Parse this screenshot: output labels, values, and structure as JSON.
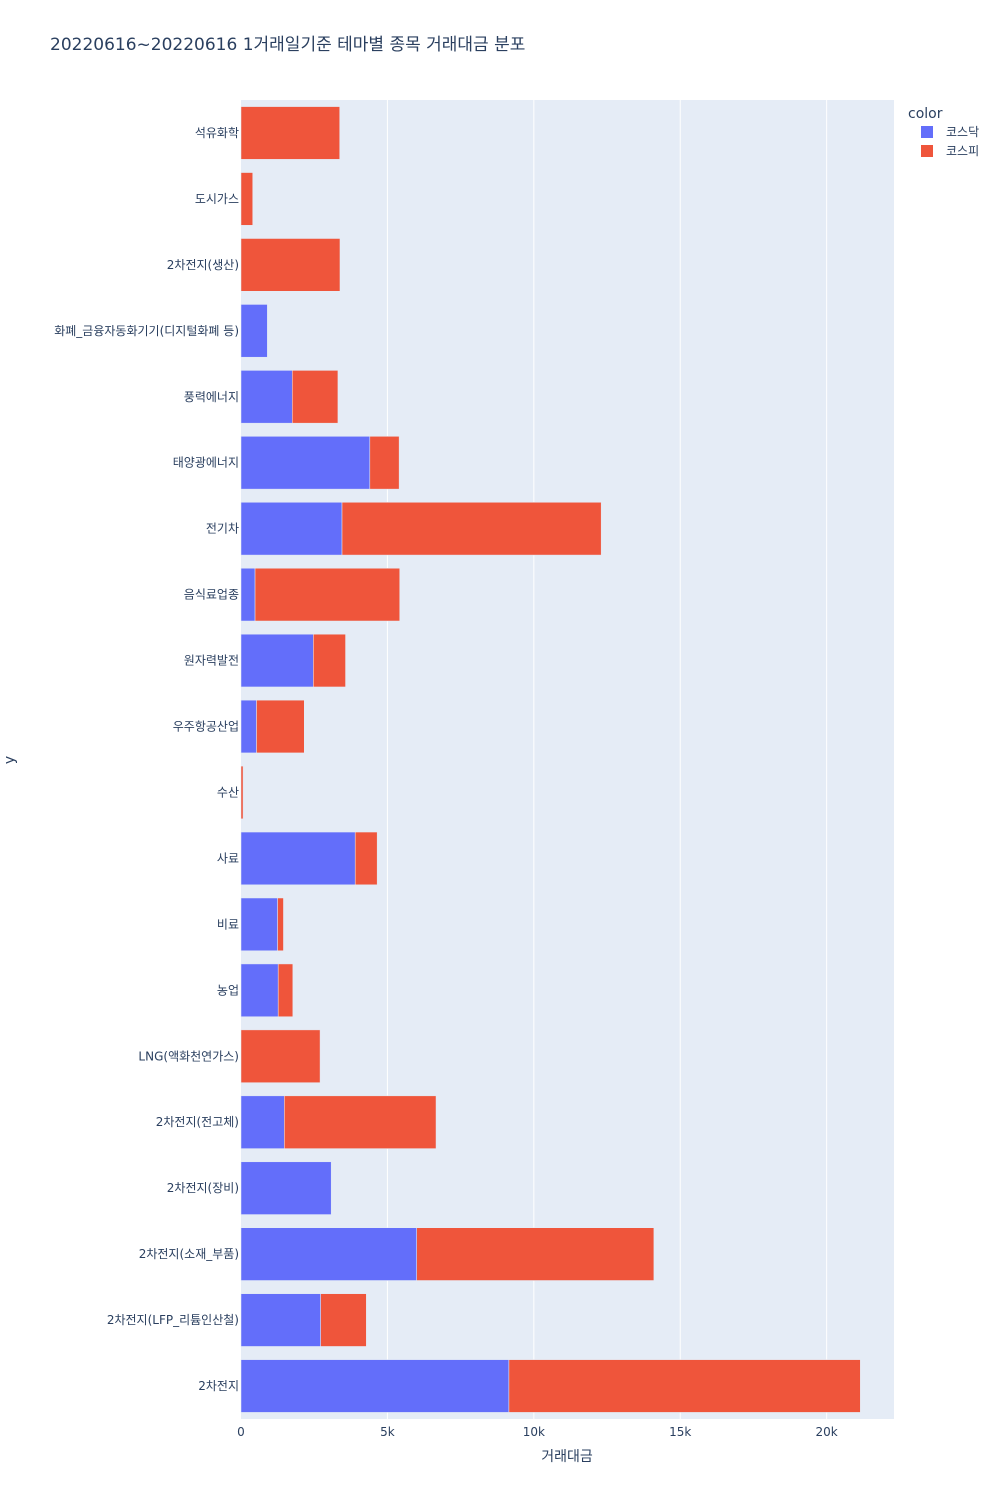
{
  "chart_data": {
    "type": "bar",
    "orientation": "horizontal",
    "stacked": true,
    "title": "20220616~20220616 1거래일기준 테마별 종목 거래대금 분포",
    "xlabel": "거래대금",
    "ylabel": "y",
    "xlim": [
      0,
      22300
    ],
    "x_ticks": [
      {
        "value": 0,
        "label": "0"
      },
      {
        "value": 5000,
        "label": "5k"
      },
      {
        "value": 10000,
        "label": "10k"
      },
      {
        "value": 15000,
        "label": "15k"
      },
      {
        "value": 20000,
        "label": "20k"
      }
    ],
    "grid": true,
    "legend": {
      "title": "color",
      "placement": "top-right outside"
    },
    "categories": [
      "석유화학",
      "도시가스",
      "2차전지(생산)",
      "화폐_금융자동화기기(디지털화폐 등)",
      "풍력에너지",
      "태양광에너지",
      "전기차",
      "음식료업종",
      "원자력발전",
      "우주항공산업",
      "수산",
      "사료",
      "비료",
      "농업",
      "LNG(액화천연가스)",
      "2차전지(전고체)",
      "2차전지(장비)",
      "2차전지(소재_부품)",
      "2차전지(LFP_리튬인산철)",
      "2차전지"
    ],
    "series": [
      {
        "name": "코스닥",
        "color": "#636efa",
        "values": [
          0,
          0,
          0,
          900,
          1750,
          4400,
          3450,
          480,
          2470,
          530,
          0,
          3900,
          1250,
          1270,
          0,
          1480,
          3080,
          6000,
          2720,
          9150
        ]
      },
      {
        "name": "코스피",
        "color": "#ef553b",
        "values": [
          3370,
          400,
          3380,
          0,
          1560,
          1000,
          8850,
          4940,
          1100,
          1630,
          70,
          750,
          200,
          500,
          2700,
          5180,
          0,
          8100,
          1560,
          12000
        ]
      }
    ]
  }
}
